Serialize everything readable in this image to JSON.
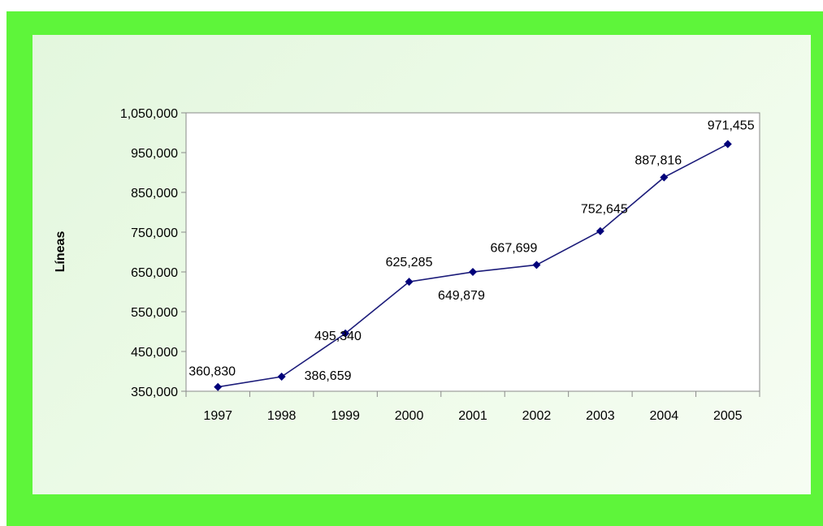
{
  "chart_data": {
    "type": "line",
    "title": "",
    "xlabel": "",
    "ylabel": "Líneas",
    "categories": [
      "1997",
      "1998",
      "1999",
      "2000",
      "2001",
      "2002",
      "2003",
      "2004",
      "2005"
    ],
    "values": [
      360830,
      386659,
      495340,
      625285,
      649879,
      667699,
      752645,
      887816,
      971455
    ],
    "data_labels": [
      "360,830",
      "386,659",
      "495,340",
      "625,285",
      "649,879",
      "667,699",
      "752,645",
      "887,816",
      "971,455"
    ],
    "ylim": [
      350000,
      1050000
    ],
    "y_ticks": [
      350000,
      450000,
      550000,
      650000,
      750000,
      850000,
      950000,
      1050000
    ],
    "y_tick_labels": [
      "350,000",
      "450,000",
      "550,000",
      "650,000",
      "750,000",
      "850,000",
      "950,000",
      "1,050,000"
    ],
    "grid": false,
    "legend": "none",
    "colors": {
      "line": "#1c1c7a",
      "marker": "#00007a",
      "frame": "#5ef53a",
      "panel": "#e8f8e3"
    }
  }
}
